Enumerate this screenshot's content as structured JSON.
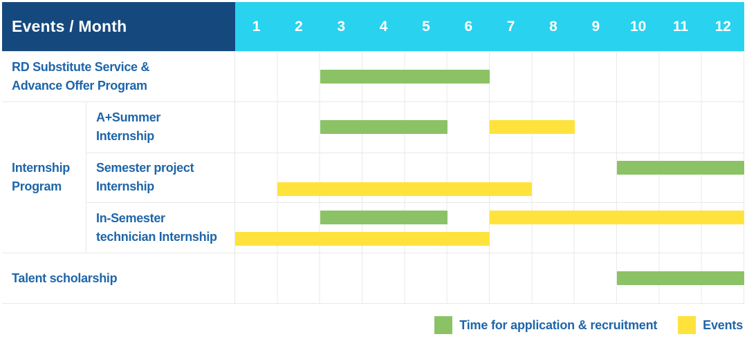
{
  "header": {
    "title": "Events / Month",
    "months": [
      "1",
      "2",
      "3",
      "4",
      "5",
      "6",
      "7",
      "8",
      "9",
      "10",
      "11",
      "12"
    ]
  },
  "colors": {
    "header_bg": "#15497e",
    "months_bg": "#29d2ee",
    "green": "#8cc266",
    "yellow": "#ffe33c",
    "text": "#1e65a9",
    "grid": "#e8e8e8"
  },
  "body": {
    "row_rd": {
      "label": [
        "RD Substitute Service &",
        "Advance Offer Program"
      ],
      "bars": [
        {
          "type": "green",
          "start": 3,
          "end": 6,
          "line": "single"
        }
      ]
    },
    "internship_group": {
      "label": [
        "Internship",
        "Program"
      ],
      "rows": [
        {
          "label": [
            "A+Summer",
            "Internship"
          ],
          "bars": [
            {
              "type": "green",
              "start": 3,
              "end": 5,
              "line": "single"
            },
            {
              "type": "yellow",
              "start": 7,
              "end": 8,
              "line": "single"
            }
          ]
        },
        {
          "label": [
            "Semester project",
            "Internship"
          ],
          "bars": [
            {
              "type": "green",
              "start": 10,
              "end": 12,
              "line": "top"
            },
            {
              "type": "yellow",
              "start": 2,
              "end": 7,
              "line": "bottom"
            }
          ]
        },
        {
          "label": [
            "In-Semester",
            "technician Internship"
          ],
          "bars": [
            {
              "type": "green",
              "start": 3,
              "end": 5,
              "line": "top"
            },
            {
              "type": "yellow",
              "start": 7,
              "end": 12,
              "line": "top"
            },
            {
              "type": "yellow",
              "start": 1,
              "end": 6,
              "line": "bottom"
            }
          ]
        }
      ]
    },
    "row_talent": {
      "label": [
        "Talent scholarship"
      ],
      "bars": [
        {
          "type": "green",
          "start": 10,
          "end": 12,
          "line": "single"
        }
      ]
    }
  },
  "legend": {
    "items": [
      {
        "label": "Time for application & recruitment",
        "color_key": "green"
      },
      {
        "label": "Events",
        "color_key": "yellow"
      }
    ]
  },
  "chart_data": {
    "type": "bar",
    "subtype": "gantt",
    "title": "Events / Month",
    "xlabel": "Month",
    "x_ticks": [
      1,
      2,
      3,
      4,
      5,
      6,
      7,
      8,
      9,
      10,
      11,
      12
    ],
    "xlim": [
      1,
      12
    ],
    "grid": true,
    "legend_position": "bottom-right",
    "series": [
      {
        "name": "Time for application & recruitment",
        "color": "#8cc266"
      },
      {
        "name": "Events",
        "color": "#ffe33c"
      }
    ],
    "tasks": [
      {
        "row": "RD Substitute Service & Advance Offer Program",
        "group": null,
        "application_recruitment_months": [
          [
            3,
            6
          ]
        ],
        "event_months": []
      },
      {
        "row": "A+Summer Internship",
        "group": "Internship Program",
        "application_recruitment_months": [
          [
            3,
            5
          ]
        ],
        "event_months": [
          [
            7,
            8
          ]
        ]
      },
      {
        "row": "Semester project Internship",
        "group": "Internship Program",
        "application_recruitment_months": [
          [
            10,
            12
          ]
        ],
        "event_months": [
          [
            2,
            7
          ]
        ]
      },
      {
        "row": "In-Semester technician Internship",
        "group": "Internship Program",
        "application_recruitment_months": [
          [
            3,
            5
          ]
        ],
        "event_months": [
          [
            1,
            6
          ],
          [
            7,
            12
          ]
        ]
      },
      {
        "row": "Talent scholarship",
        "group": null,
        "application_recruitment_months": [
          [
            10,
            12
          ]
        ],
        "event_months": []
      }
    ]
  }
}
